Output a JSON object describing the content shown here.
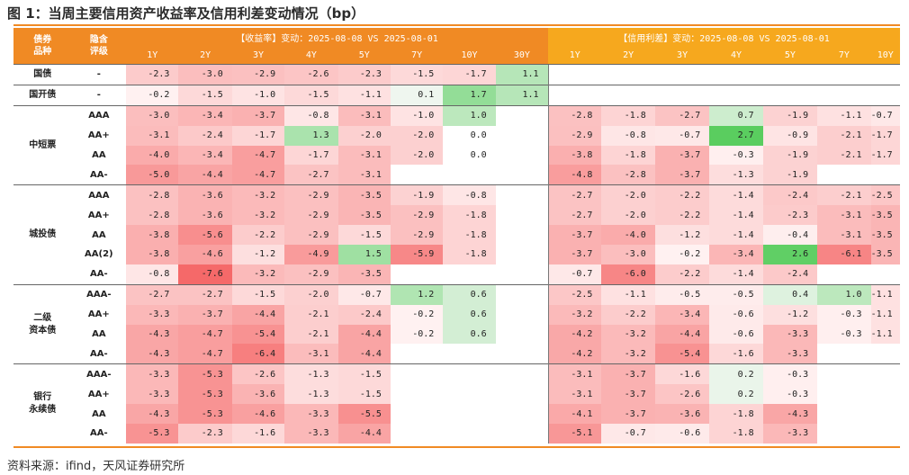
{
  "title": "图 1：当周主要信用资产收益率及信用利差变动情况（bp）",
  "source": "资料来源：ifind，天风证券研究所",
  "header": {
    "col1": "债券\n品种",
    "col2": "隐含\n评级",
    "yield_banner": "【收益率】变动：2025-08-08 VS 2025-08-01",
    "spread_banner": "【信用利差】变动：2025-08-08 VS 2025-08-01",
    "yield_tenors": [
      "1Y",
      "2Y",
      "3Y",
      "4Y",
      "5Y",
      "7Y",
      "10Y",
      "30Y"
    ],
    "spread_tenors": [
      "1Y",
      "2Y",
      "3Y",
      "4Y",
      "5Y",
      "7Y",
      "10Y"
    ]
  },
  "groups": [
    {
      "name": "国债",
      "rows": [
        {
          "rating": "-",
          "yield": [
            "-2.3",
            "-3.0",
            "-2.9",
            "-2.6",
            "-2.3",
            "-1.5",
            "-1.7",
            "1.1"
          ],
          "spread": [
            "",
            "",
            "",
            "",
            "",
            "",
            ""
          ]
        }
      ]
    },
    {
      "name": "国开债",
      "rows": [
        {
          "rating": "-",
          "yield": [
            "-0.2",
            "-1.5",
            "-1.0",
            "-1.5",
            "-1.1",
            "0.1",
            "1.7",
            "1.1"
          ],
          "spread": [
            "",
            "",
            "",
            "",
            "",
            "",
            ""
          ]
        }
      ]
    },
    {
      "name": "中短票",
      "rows": [
        {
          "rating": "AAA",
          "yield": [
            "-3.0",
            "-3.4",
            "-3.7",
            "-0.8",
            "-3.1",
            "-1.0",
            "1.0",
            ""
          ],
          "spread": [
            "-2.8",
            "-1.8",
            "-2.7",
            "0.7",
            "-1.9",
            "-1.1",
            "-0.7"
          ]
        },
        {
          "rating": "AA+",
          "yield": [
            "-3.1",
            "-2.4",
            "-1.7",
            "1.3",
            "-2.0",
            "-2.0",
            "0.0",
            ""
          ],
          "spread": [
            "-2.9",
            "-0.8",
            "-0.7",
            "2.7",
            "-0.9",
            "-2.1",
            "-1.7"
          ]
        },
        {
          "rating": "AA",
          "yield": [
            "-4.0",
            "-3.4",
            "-4.7",
            "-1.7",
            "-3.1",
            "-2.0",
            "0.0",
            ""
          ],
          "spread": [
            "-3.8",
            "-1.8",
            "-3.7",
            "-0.3",
            "-1.9",
            "-2.1",
            "-1.7"
          ]
        },
        {
          "rating": "AA-",
          "yield": [
            "-5.0",
            "-4.4",
            "-4.7",
            "-2.7",
            "-3.1",
            "",
            "",
            ""
          ],
          "spread": [
            "-4.8",
            "-2.8",
            "-3.7",
            "-1.3",
            "-1.9",
            "",
            ""
          ]
        }
      ]
    },
    {
      "name": "城投债",
      "rows": [
        {
          "rating": "AAA",
          "yield": [
            "-2.8",
            "-3.6",
            "-3.2",
            "-2.9",
            "-3.5",
            "-1.9",
            "-0.8",
            ""
          ],
          "spread": [
            "-2.7",
            "-2.0",
            "-2.2",
            "-1.4",
            "-2.4",
            "-2.1",
            "-2.5"
          ]
        },
        {
          "rating": "AA+",
          "yield": [
            "-2.8",
            "-3.6",
            "-3.2",
            "-2.9",
            "-3.5",
            "-2.9",
            "-1.8",
            ""
          ],
          "spread": [
            "-2.7",
            "-2.0",
            "-2.2",
            "-1.4",
            "-2.3",
            "-3.1",
            "-3.5"
          ]
        },
        {
          "rating": "AA",
          "yield": [
            "-3.8",
            "-5.6",
            "-2.2",
            "-2.9",
            "-1.5",
            "-2.9",
            "-1.8",
            ""
          ],
          "spread": [
            "-3.7",
            "-4.0",
            "-1.2",
            "-1.4",
            "-0.4",
            "-3.1",
            "-3.5"
          ]
        },
        {
          "rating": "AA(2)",
          "yield": [
            "-3.8",
            "-4.6",
            "-1.2",
            "-4.9",
            "1.5",
            "-5.9",
            "-1.8",
            ""
          ],
          "spread": [
            "-3.7",
            "-3.0",
            "-0.2",
            "-3.4",
            "2.6",
            "-6.1",
            "-3.5"
          ]
        },
        {
          "rating": "AA-",
          "yield": [
            "-0.8",
            "-7.6",
            "-3.2",
            "-2.9",
            "-3.5",
            "",
            "",
            ""
          ],
          "spread": [
            "-0.7",
            "-6.0",
            "-2.2",
            "-1.4",
            "-2.4",
            "",
            ""
          ]
        }
      ]
    },
    {
      "name": "二级\n资本债",
      "rows": [
        {
          "rating": "AAA-",
          "yield": [
            "-2.7",
            "-2.7",
            "-1.5",
            "-2.0",
            "-0.7",
            "1.2",
            "0.6",
            ""
          ],
          "spread": [
            "-2.5",
            "-1.1",
            "-0.5",
            "-0.5",
            "0.4",
            "1.0",
            "-1.1"
          ]
        },
        {
          "rating": "AA+",
          "yield": [
            "-3.3",
            "-3.7",
            "-4.4",
            "-2.1",
            "-2.4",
            "-0.2",
            "0.6",
            ""
          ],
          "spread": [
            "-3.2",
            "-2.2",
            "-3.4",
            "-0.6",
            "-1.2",
            "-0.3",
            "-1.1"
          ]
        },
        {
          "rating": "AA",
          "yield": [
            "-4.3",
            "-4.7",
            "-5.4",
            "-2.1",
            "-4.4",
            "-0.2",
            "0.6",
            ""
          ],
          "spread": [
            "-4.2",
            "-3.2",
            "-4.4",
            "-0.6",
            "-3.3",
            "-0.3",
            "-1.1"
          ]
        },
        {
          "rating": "AA-",
          "yield": [
            "-4.3",
            "-4.7",
            "-6.4",
            "-3.1",
            "-4.4",
            "",
            "",
            ""
          ],
          "spread": [
            "-4.2",
            "-3.2",
            "-5.4",
            "-1.6",
            "-3.3",
            "",
            ""
          ]
        }
      ]
    },
    {
      "name": "银行\n永续债",
      "rows": [
        {
          "rating": "AAA-",
          "yield": [
            "-3.3",
            "-5.3",
            "-2.6",
            "-1.3",
            "-1.5",
            "",
            "",
            ""
          ],
          "spread": [
            "-3.1",
            "-3.7",
            "-1.6",
            "0.2",
            "-0.3",
            "",
            ""
          ]
        },
        {
          "rating": "AA+",
          "yield": [
            "-3.3",
            "-5.3",
            "-3.6",
            "-1.3",
            "-1.5",
            "",
            "",
            ""
          ],
          "spread": [
            "-3.1",
            "-3.7",
            "-2.6",
            "0.2",
            "-0.3",
            "",
            ""
          ]
        },
        {
          "rating": "AA",
          "yield": [
            "-4.3",
            "-5.3",
            "-4.6",
            "-3.3",
            "-5.5",
            "",
            "",
            ""
          ],
          "spread": [
            "-4.1",
            "-3.7",
            "-3.6",
            "-1.8",
            "-4.3",
            "",
            ""
          ]
        },
        {
          "rating": "AA-",
          "yield": [
            "-5.3",
            "-2.3",
            "-1.6",
            "-3.3",
            "-4.4",
            "",
            "",
            ""
          ],
          "spread": [
            "-5.1",
            "-0.7",
            "-0.6",
            "-1.8",
            "-3.3",
            "",
            ""
          ]
        }
      ]
    }
  ]
}
